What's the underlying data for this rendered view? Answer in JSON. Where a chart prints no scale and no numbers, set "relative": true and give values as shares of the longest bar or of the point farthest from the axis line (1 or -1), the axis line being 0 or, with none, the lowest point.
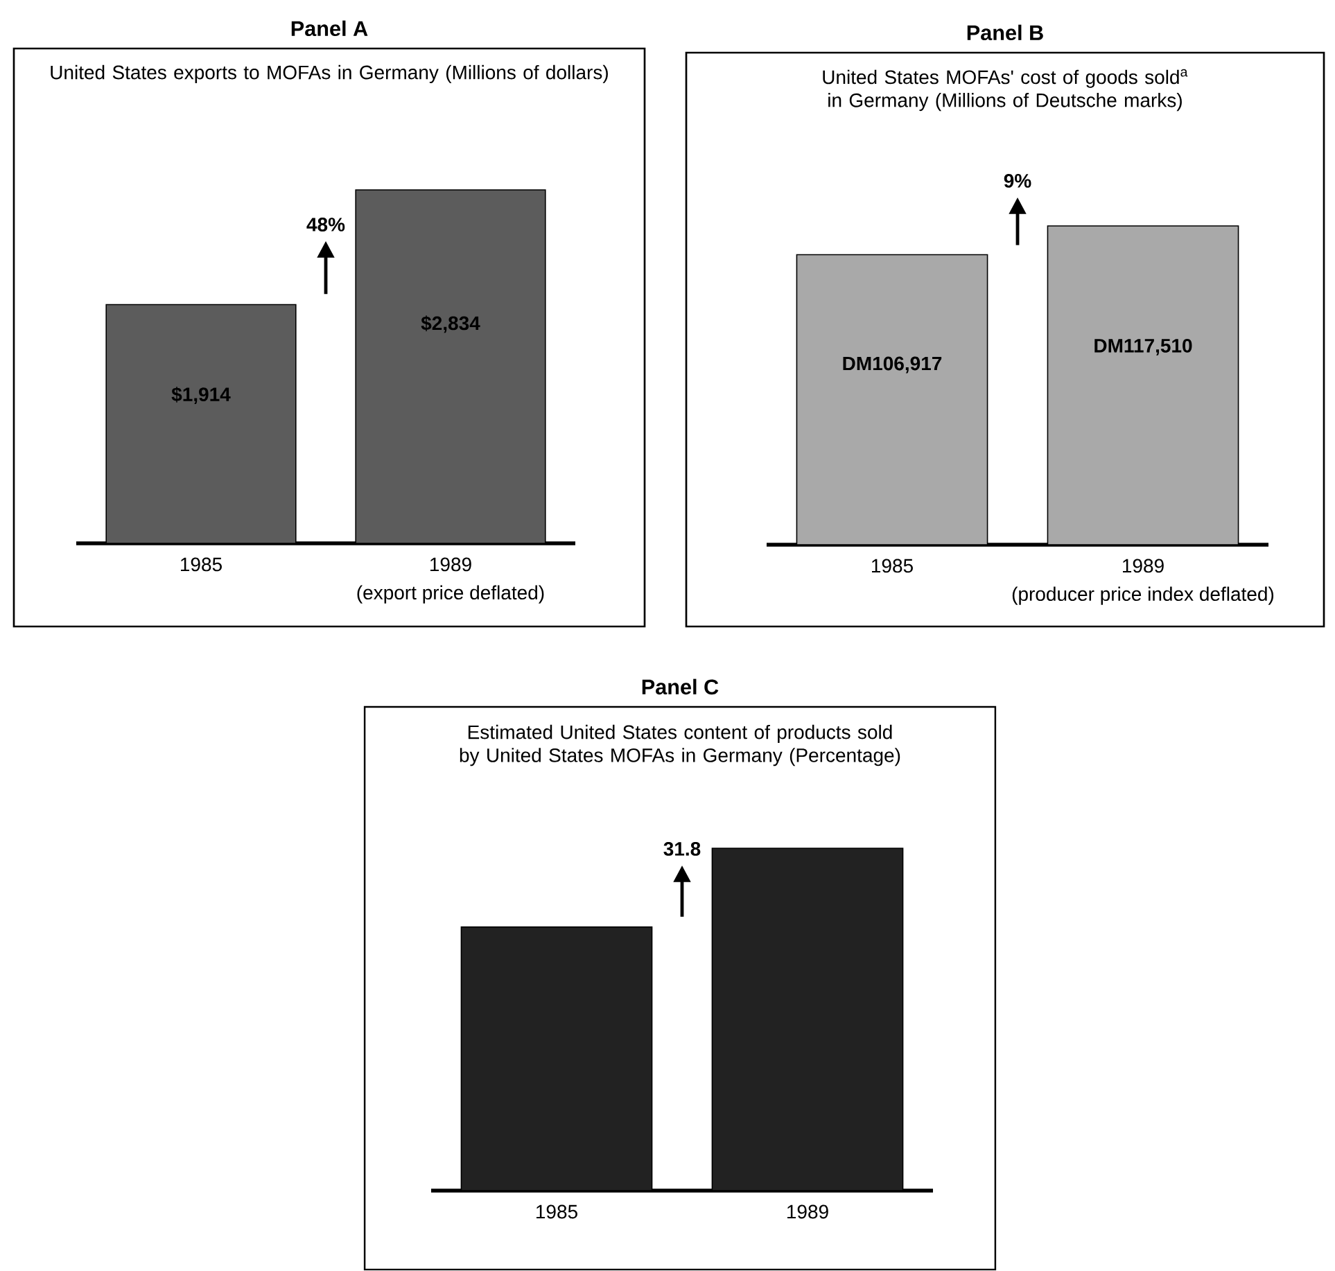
{
  "chart_data": [
    {
      "type": "bar",
      "title": "Panel A",
      "subtitle": "United States exports to MOFAs in Germany (Millions of dollars)",
      "xlabel": "(export price deflated)",
      "categories": [
        "1985",
        "1989"
      ],
      "values": [
        1914,
        2834
      ],
      "value_labels": [
        "$1,914",
        "$2,834"
      ],
      "color": "#5c5c5c",
      "annotations": [
        "48%"
      ]
    },
    {
      "type": "bar",
      "title": "Panel B",
      "subtitle": "United States MOFAs' cost of goods sold$^{a}$ in Germany (Millions of Deutsche marks)",
      "xlabel": "(producer price index deflated)",
      "categories": [
        "1985",
        "1989"
      ],
      "values": [
        106917,
        117510
      ],
      "value_labels": [
        "DM106,917",
        "DM117,510"
      ],
      "color": "#a9a9a9",
      "annotations": [
        "9%"
      ]
    },
    {
      "type": "bar",
      "title": "Panel C",
      "subtitle": "Estimated United States content of products sold by United States MOFAs in Germany (Percentage)",
      "categories": [
        "1985",
        "1989"
      ],
      "values": [
        0.77,
        1
      ],
      "relative": true,
      "color": "#222222",
      "annotations": [
        "31.8"
      ]
    }
  ]
}
